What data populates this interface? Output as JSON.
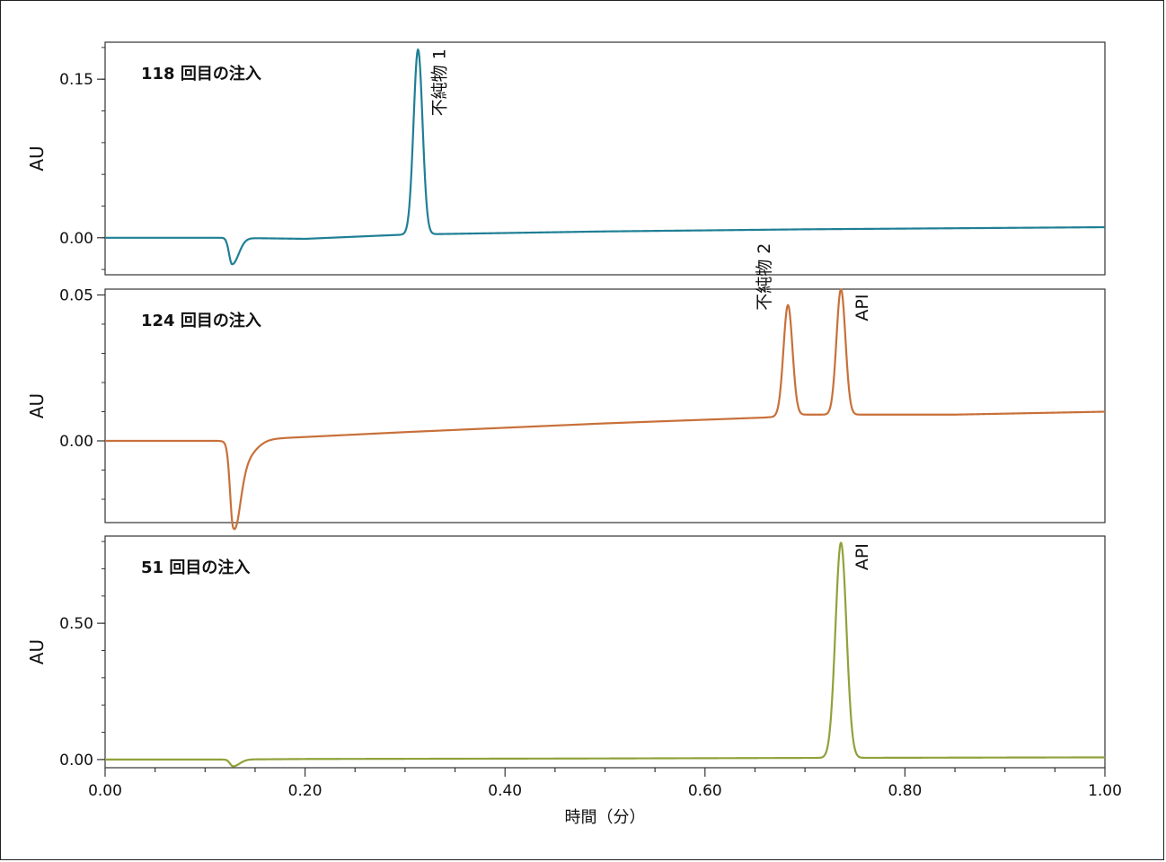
{
  "chart_data": {
    "type": "line",
    "xlabel": "時間（分）",
    "xlim": [
      0.0,
      1.0
    ],
    "xticks": [
      "0.00",
      "0.20",
      "0.40",
      "0.60",
      "0.80",
      "1.00"
    ],
    "panels": [
      {
        "title": "118 回目の注入",
        "ylabel": "AU",
        "color": "#1f7f95",
        "ylim": [
          -0.035,
          0.185
        ],
        "yticks": [
          {
            "value": 0.0,
            "label": "0.00"
          },
          {
            "value": 0.15,
            "label": "0.15"
          }
        ],
        "annotations": [
          {
            "text": "不純物 1",
            "x": 0.313,
            "y": 0.178
          }
        ],
        "baseline": [
          [
            0.0,
            0.0
          ],
          [
            0.12,
            0.0
          ],
          [
            0.2,
            -0.001
          ],
          [
            0.3,
            0.003
          ],
          [
            0.5,
            0.006
          ],
          [
            0.7,
            0.008
          ],
          [
            1.0,
            0.01
          ]
        ],
        "dips": [
          {
            "x": 0.127,
            "depth": -0.025,
            "width": 0.003
          }
        ],
        "peaks": [
          {
            "x": 0.313,
            "height": 0.175,
            "width": 0.0045
          }
        ]
      },
      {
        "title": "124 回目の注入",
        "ylabel": "AU",
        "color": "#c8703a",
        "ylim": [
          -0.028,
          0.052
        ],
        "yticks": [
          {
            "value": 0.0,
            "label": "0.00"
          },
          {
            "value": 0.05,
            "label": "0.05"
          }
        ],
        "annotations": [
          {
            "text": "不純物 2",
            "x": 0.683,
            "y": 0.045
          },
          {
            "text": "API",
            "x": 0.736,
            "y": 0.05
          }
        ],
        "baseline": [
          [
            0.0,
            0.0
          ],
          [
            0.12,
            0.0
          ],
          [
            0.18,
            0.001
          ],
          [
            0.3,
            0.003
          ],
          [
            0.5,
            0.006
          ],
          [
            0.66,
            0.008
          ],
          [
            0.7,
            0.009
          ],
          [
            0.85,
            0.009
          ],
          [
            1.0,
            0.01
          ]
        ],
        "dips": [
          {
            "x": 0.128,
            "depth": -0.025,
            "width": 0.003
          },
          {
            "x": 0.134,
            "depth": -0.008,
            "width": 0.006
          }
        ],
        "peaks": [
          {
            "x": 0.683,
            "height": 0.038,
            "width": 0.0045
          },
          {
            "x": 0.736,
            "height": 0.043,
            "width": 0.0045
          }
        ]
      },
      {
        "title": "51 回目の注入",
        "ylabel": "AU",
        "color": "#8fa23a",
        "ylim": [
          -0.03,
          0.82
        ],
        "yticks": [
          {
            "value": 0.0,
            "label": "0.00"
          },
          {
            "value": 0.5,
            "label": "0.50"
          }
        ],
        "annotations": [
          {
            "text": "API",
            "x": 0.736,
            "y": 0.79
          }
        ],
        "baseline": [
          [
            0.0,
            0.0
          ],
          [
            0.12,
            0.0
          ],
          [
            0.2,
            0.002
          ],
          [
            0.5,
            0.004
          ],
          [
            0.7,
            0.006
          ],
          [
            1.0,
            0.008
          ]
        ],
        "dips": [
          {
            "x": 0.128,
            "depth": -0.025,
            "width": 0.003
          }
        ],
        "peaks": [
          {
            "x": 0.736,
            "height": 0.79,
            "width": 0.0055
          }
        ]
      }
    ]
  }
}
